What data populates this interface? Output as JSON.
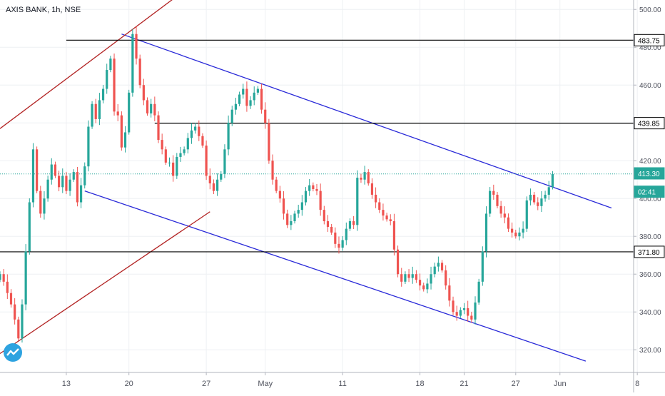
{
  "symbol_label": "AXIS BANK, 1h, NSE",
  "logo_icon": "tradingview-logo-icon",
  "colors": {
    "up": "#26a69a",
    "down": "#ef5350",
    "trend": "#2929d8",
    "channel": "#b22222",
    "level": "#000000",
    "last_price": "#26a69a",
    "grid": "#eef0f3"
  },
  "chart_data": {
    "type": "candlestick",
    "title": "AXIS BANK, 1h, NSE",
    "xlabel": "",
    "ylabel": "",
    "ylim": [
      308,
      505
    ],
    "x_index_range": [
      0,
      172
    ],
    "grid": true,
    "y_ticks": [
      320,
      340,
      360,
      380,
      400,
      420,
      440,
      460,
      480,
      500
    ],
    "x_ticks": [
      {
        "label": "13",
        "index": 18
      },
      {
        "label": "20",
        "index": 35
      },
      {
        "label": "27",
        "index": 56
      },
      {
        "label": "May",
        "index": 72
      },
      {
        "label": "11",
        "index": 93
      },
      {
        "label": "18",
        "index": 114
      },
      {
        "label": "21",
        "index": 126
      },
      {
        "label": "27",
        "index": 140
      },
      {
        "label": "Jun",
        "index": 152
      },
      {
        "label": "8",
        "index": 173
      }
    ],
    "price_labels": [
      {
        "text": "483.75",
        "value": 483.75,
        "style": "level"
      },
      {
        "text": "439.85",
        "value": 439.85,
        "style": "level"
      },
      {
        "text": "413.30",
        "value": 413.3,
        "style": "last"
      },
      {
        "text": "02:41",
        "value": 403.6,
        "style": "timer"
      },
      {
        "text": "371.80",
        "value": 371.8,
        "style": "level"
      }
    ],
    "levels": [
      {
        "value": 483.75,
        "x_start_index": 18
      },
      {
        "value": 439.85,
        "x_start_index": 42
      },
      {
        "value": 371.8,
        "x_start_index": 0
      }
    ],
    "trendlines": [
      {
        "kind": "trend",
        "from": [
          33,
          487
        ],
        "to": [
          166,
          395
        ]
      },
      {
        "kind": "trend",
        "from": [
          23,
          404
        ],
        "to": [
          159,
          314
        ]
      },
      {
        "kind": "channel",
        "from": [
          0,
          437
        ],
        "to": [
          48,
          507
        ]
      },
      {
        "kind": "channel",
        "from": [
          0,
          318
        ],
        "to": [
          57,
          393
        ]
      }
    ],
    "closes": [
      360,
      356,
      350,
      344,
      336,
      326,
      344,
      372,
      398,
      426,
      404,
      392,
      400,
      410,
      418,
      412,
      406,
      412,
      404,
      410,
      414,
      398,
      407,
      417,
      438,
      450,
      442,
      452,
      458,
      468,
      474,
      446,
      444,
      427,
      435,
      456,
      487,
      474,
      460,
      452,
      445,
      450,
      444,
      431,
      426,
      419,
      419,
      412,
      422,
      424,
      426,
      432,
      436,
      438,
      433,
      428,
      412,
      408,
      404,
      410,
      413,
      426,
      440,
      447,
      450,
      455,
      458,
      449,
      452,
      456,
      458,
      447,
      440,
      420,
      410,
      404,
      400,
      392,
      386,
      388,
      392,
      394,
      398,
      404,
      407,
      405,
      404,
      394,
      388,
      385,
      382,
      376,
      374,
      378,
      384,
      388,
      386,
      411,
      410,
      414,
      408,
      402,
      398,
      394,
      391,
      389,
      388,
      373,
      360,
      356,
      360,
      358,
      360,
      357,
      354,
      352,
      355,
      360,
      364,
      366,
      362,
      354,
      346,
      340,
      338,
      341,
      342,
      338,
      336,
      345,
      356,
      372,
      392,
      404,
      402,
      396,
      392,
      390,
      384,
      382,
      380,
      382,
      384,
      399,
      402,
      398,
      396,
      400,
      402,
      406,
      413
    ]
  }
}
